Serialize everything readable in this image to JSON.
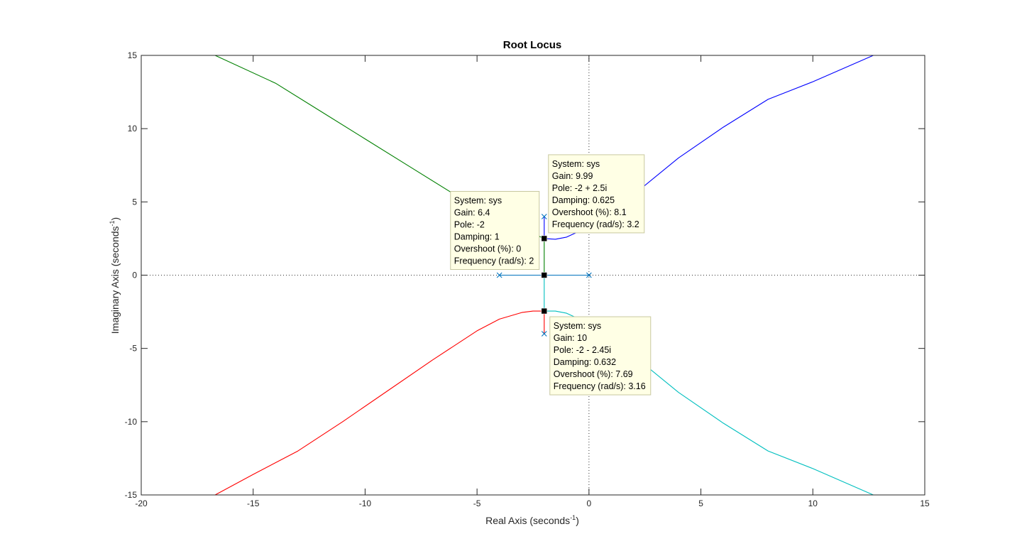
{
  "chart_data": {
    "type": "line",
    "title": "Root Locus",
    "xlabel": "Real Axis (seconds",
    "xlabel_sup": "-1",
    "xlabel_close": ")",
    "ylabel": "Imaginary Axis (seconds",
    "ylabel_sup": "-1",
    "ylabel_close": ")",
    "xlim": [
      -20,
      15
    ],
    "ylim": [
      -15,
      15
    ],
    "xticks": [
      -20,
      -15,
      -10,
      -5,
      0,
      5,
      10,
      15
    ],
    "yticks": [
      -15,
      -10,
      -5,
      0,
      5,
      10,
      15
    ],
    "grid": false,
    "open_loop_poles": [
      [
        -4,
        0
      ],
      [
        0,
        0
      ],
      [
        -2,
        4
      ],
      [
        -2,
        -4
      ]
    ],
    "series": [
      {
        "color": "#0000ff",
        "points": [
          [
            -2,
            4
          ],
          [
            -2,
            3.2
          ],
          [
            -2,
            2.5
          ],
          [
            -1.5,
            2.45
          ],
          [
            -1,
            2.6
          ],
          [
            0,
            3.3
          ],
          [
            1,
            4.3
          ],
          [
            2,
            5.5
          ],
          [
            4,
            8
          ],
          [
            6,
            10.1
          ],
          [
            8,
            12
          ],
          [
            10,
            13.2
          ],
          [
            12.7,
            15
          ]
        ]
      },
      {
        "color": "#00bfbf",
        "points": [
          [
            -2,
            0
          ],
          [
            -2,
            -2.45
          ],
          [
            -1.5,
            -2.45
          ],
          [
            -1,
            -2.6
          ],
          [
            0,
            -3.3
          ],
          [
            1,
            -4.3
          ],
          [
            2,
            -5.5
          ],
          [
            4,
            -8
          ],
          [
            6,
            -10.1
          ],
          [
            8,
            -12
          ],
          [
            10,
            -13.2
          ],
          [
            12.7,
            -15
          ]
        ]
      },
      {
        "color": "#ff0000",
        "points": [
          [
            -2,
            -4
          ],
          [
            -2,
            -2.45
          ],
          [
            -2.5,
            -2.45
          ],
          [
            -3,
            -2.55
          ],
          [
            -4,
            -3
          ],
          [
            -5,
            -3.8
          ],
          [
            -7,
            -5.8
          ],
          [
            -9,
            -7.9
          ],
          [
            -11,
            -10
          ],
          [
            -13,
            -12
          ],
          [
            -15,
            -13.6
          ],
          [
            -16.7,
            -15
          ]
        ]
      },
      {
        "color": "#008000",
        "points": [
          [
            -16.7,
            15
          ],
          [
            -14,
            13.1
          ],
          [
            -12,
            11.2
          ],
          [
            -10,
            9.3
          ],
          [
            -8,
            7.4
          ],
          [
            -6,
            5.5
          ],
          [
            -4.5,
            4.3
          ],
          [
            -3.5,
            3.5
          ],
          [
            -2.6,
            2.9
          ],
          [
            -2,
            2.5
          ],
          [
            -2,
            0
          ]
        ]
      },
      {
        "color": "#0072bd",
        "points": [
          [
            -4,
            0
          ],
          [
            -2,
            0
          ],
          [
            0,
            0
          ]
        ]
      }
    ],
    "datatips": [
      {
        "point": [
          -2,
          2.5
        ],
        "lines": [
          "System: sys",
          "Gain: 9.99",
          "Pole: -2 + 2.5i",
          "Damping: 0.625",
          "Overshoot (%): 8.1",
          "Frequency (rad/s): 3.2"
        ]
      },
      {
        "point": [
          -2,
          0
        ],
        "lines": [
          "System: sys",
          "Gain: 6.4",
          "Pole: -2",
          "Damping: 1",
          "Overshoot (%): 0",
          "Frequency (rad/s): 2"
        ]
      },
      {
        "point": [
          -2,
          -2.45
        ],
        "lines": [
          "System: sys",
          "Gain: 10",
          "Pole: -2 - 2.45i",
          "Damping: 0.632",
          "Overshoot (%): 7.69",
          "Frequency (rad/s): 3.16"
        ]
      }
    ],
    "colors": {
      "axes": "#262626",
      "datatip_bg": "#ffffe5",
      "datatip_border": "#c8c8a0",
      "marker": "#000000",
      "pole_marker": "#0072bd"
    }
  }
}
